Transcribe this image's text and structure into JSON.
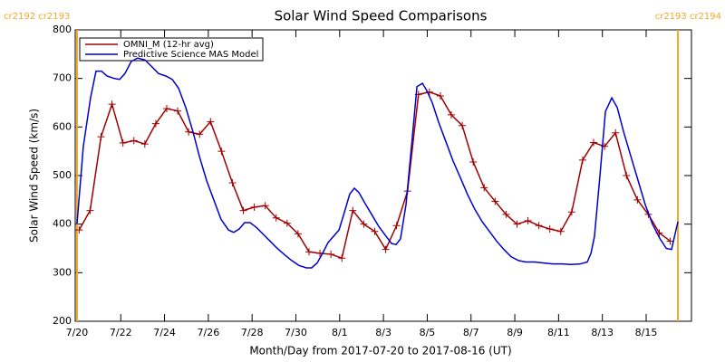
{
  "chart_data": {
    "type": "line",
    "title": "Solar Wind Speed Comparisons",
    "x_label": "Month/Day from 2017-07-20 to 2017-08-16 (UT)",
    "y_label": "Solar Wind Speed (km/s)",
    "xlim": [
      -0.08,
      28.07
    ],
    "ylim": [
      200,
      800
    ],
    "yticks": [
      200,
      300,
      400,
      500,
      600,
      700,
      800
    ],
    "xticks": [
      {
        "value": 0,
        "label": "7/20"
      },
      {
        "value": 2,
        "label": "7/22"
      },
      {
        "value": 4,
        "label": "7/24"
      },
      {
        "value": 6,
        "label": "7/26"
      },
      {
        "value": 8,
        "label": "7/28"
      },
      {
        "value": 10,
        "label": "7/30"
      },
      {
        "value": 12,
        "label": "8/1"
      },
      {
        "value": 14,
        "label": "8/3"
      },
      {
        "value": 16,
        "label": "8/5"
      },
      {
        "value": 18,
        "label": "8/7"
      },
      {
        "value": 20,
        "label": "8/9"
      },
      {
        "value": 22,
        "label": "8/11"
      },
      {
        "value": 24,
        "label": "8/13"
      },
      {
        "value": 26,
        "label": "8/15"
      }
    ],
    "carrington_lines": [
      {
        "x": 0,
        "label": "cr2192 cr2193"
      },
      {
        "x": 27.45,
        "label": "cr2193 cr2194"
      }
    ],
    "carrington_color": "#f5a623",
    "series": [
      {
        "name": "OMNI_M (12-hr avg)",
        "color": "#a00000",
        "marker": "plus",
        "x": [
          0.1,
          0.6,
          1.1,
          1.6,
          2.1,
          2.6,
          3.1,
          3.6,
          4.1,
          4.6,
          5.1,
          5.6,
          6.1,
          6.6,
          7.1,
          7.6,
          8.1,
          8.6,
          9.1,
          9.6,
          10.1,
          10.6,
          11.1,
          11.6,
          12.1,
          12.6,
          13.1,
          13.6,
          14.1,
          14.6,
          15.1,
          15.6,
          16.1,
          16.6,
          17.1,
          17.6,
          18.1,
          18.6,
          19.1,
          19.6,
          20.1,
          20.6,
          21.1,
          21.6,
          22.1,
          22.6,
          23.1,
          23.6,
          24.1,
          24.6,
          25.1,
          25.6,
          26.1,
          26.6,
          27.1
        ],
        "values": [
          388,
          428,
          580,
          647,
          567,
          572,
          565,
          607,
          638,
          633,
          590,
          585,
          611,
          550,
          485,
          428,
          435,
          438,
          413,
          402,
          380,
          343,
          340,
          338,
          330,
          428,
          400,
          385,
          348,
          397,
          468,
          667,
          672,
          664,
          625,
          603,
          528,
          475,
          447,
          420,
          400,
          407,
          397,
          390,
          385,
          425,
          532,
          568,
          560,
          588,
          500,
          450,
          420,
          382,
          365
        ]
      },
      {
        "name": "Predictive Science MAS Model",
        "color": "#0000cc",
        "marker": "none",
        "x": [
          0,
          0.29,
          0.62,
          0.87,
          1.12,
          1.37,
          1.7,
          1.95,
          2.19,
          2.48,
          2.77,
          3.11,
          3.4,
          3.73,
          4.06,
          4.35,
          4.64,
          4.97,
          5.3,
          5.59,
          5.92,
          6.25,
          6.58,
          6.92,
          7.16,
          7.41,
          7.66,
          7.91,
          8.2,
          8.49,
          8.82,
          9.15,
          9.48,
          9.81,
          10.14,
          10.48,
          10.72,
          10.97,
          11.22,
          11.47,
          11.72,
          11.97,
          12.22,
          12.46,
          12.67,
          12.88,
          13.13,
          13.46,
          13.79,
          14.12,
          14.37,
          14.58,
          14.78,
          15.03,
          15.28,
          15.53,
          15.78,
          15.98,
          16.23,
          16.52,
          16.85,
          17.18,
          17.52,
          17.85,
          18.18,
          18.51,
          18.84,
          19.17,
          19.5,
          19.83,
          20.17,
          20.5,
          20.91,
          21.33,
          21.74,
          22.15,
          22.57,
          22.98,
          23.31,
          23.48,
          23.64,
          23.89,
          24.14,
          24.43,
          24.68,
          24.97,
          25.3,
          25.63,
          25.96,
          26.29,
          26.63,
          26.92,
          27.16,
          27.45
        ],
        "values": [
          400,
          560,
          660,
          715,
          715,
          705,
          700,
          698,
          710,
          735,
          742,
          738,
          725,
          710,
          705,
          698,
          680,
          640,
          590,
          540,
          490,
          450,
          410,
          388,
          383,
          390,
          403,
          403,
          393,
          380,
          365,
          350,
          337,
          325,
          315,
          310,
          310,
          320,
          340,
          362,
          375,
          388,
          425,
          462,
          474,
          465,
          445,
          420,
          395,
          375,
          360,
          358,
          370,
          440,
          560,
          683,
          690,
          675,
          650,
          610,
          570,
          530,
          495,
          460,
          430,
          405,
          385,
          365,
          348,
          333,
          325,
          322,
          322,
          320,
          318,
          318,
          317,
          318,
          322,
          340,
          375,
          500,
          632,
          660,
          640,
          590,
          540,
          490,
          440,
          400,
          370,
          350,
          348,
          405
        ]
      }
    ]
  }
}
